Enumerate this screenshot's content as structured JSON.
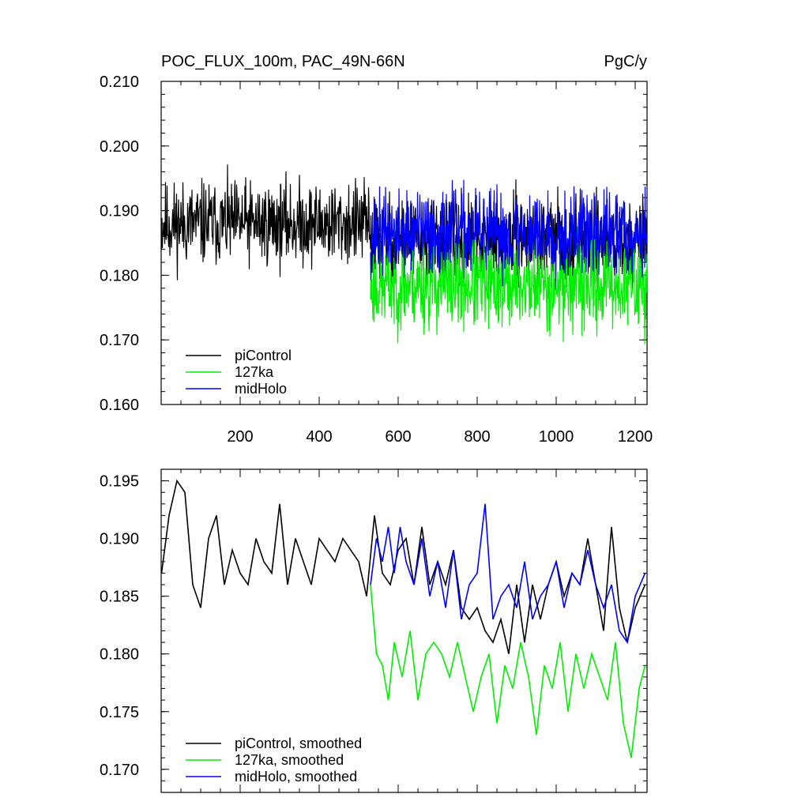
{
  "chart_data": [
    {
      "type": "line",
      "title": "POC_FLUX_100m, PAC_49N-66N",
      "units": "PgC/y",
      "xlim": [
        0,
        1230
      ],
      "ylim": [
        0.16,
        0.21
      ],
      "xticks": [
        200,
        400,
        600,
        800,
        1000,
        1200
      ],
      "xtick_labels": [
        "200",
        "400",
        "600",
        "800",
        "1000",
        "1200"
      ],
      "yticks": [
        0.16,
        0.17,
        0.18,
        0.19,
        0.2,
        0.21
      ],
      "ytick_labels": [
        "0.160",
        "0.170",
        "0.180",
        "0.190",
        "0.200",
        "0.210"
      ],
      "legend_position": "bottom-left",
      "series": [
        {
          "name": "piControl",
          "color": "#000000",
          "x_start": 1,
          "x_end": 1230,
          "mean": 0.188,
          "amplitude": 0.006,
          "mean_after_530": 0.1855
        },
        {
          "name": "127ka",
          "color": "#00ee00",
          "x_start": 530,
          "x_end": 1230,
          "mean": 0.1785,
          "amplitude": 0.0065
        },
        {
          "name": "midHolo",
          "color": "#0000ff",
          "x_start": 530,
          "x_end": 1230,
          "mean": 0.1865,
          "amplitude": 0.006
        }
      ]
    },
    {
      "type": "line",
      "xlim": [
        0,
        1230
      ],
      "ylim": [
        0.168,
        0.196
      ],
      "xticks": [
        200,
        400,
        600,
        800,
        1000,
        1200
      ],
      "yticks": [
        0.17,
        0.175,
        0.18,
        0.185,
        0.19,
        0.195
      ],
      "ytick_labels": [
        "0.170",
        "0.175",
        "0.180",
        "0.185",
        "0.190",
        "0.195"
      ],
      "legend_position": "bottom-left",
      "series": [
        {
          "name": "piControl, smoothed",
          "color": "#000000",
          "x": [
            1,
            20,
            40,
            60,
            80,
            100,
            120,
            140,
            160,
            180,
            200,
            220,
            240,
            260,
            280,
            300,
            320,
            340,
            360,
            380,
            400,
            420,
            440,
            460,
            480,
            500,
            520,
            540,
            560,
            580,
            600,
            620,
            640,
            660,
            680,
            700,
            720,
            740,
            760,
            780,
            800,
            820,
            840,
            860,
            880,
            900,
            920,
            940,
            960,
            980,
            1000,
            1020,
            1040,
            1060,
            1080,
            1100,
            1120,
            1140,
            1160,
            1180,
            1200,
            1225
          ],
          "values": [
            0.187,
            0.192,
            0.195,
            0.194,
            0.186,
            0.184,
            0.19,
            0.192,
            0.186,
            0.189,
            0.187,
            0.186,
            0.19,
            0.188,
            0.187,
            0.193,
            0.186,
            0.19,
            0.188,
            0.186,
            0.19,
            0.189,
            0.188,
            0.19,
            0.189,
            0.188,
            0.185,
            0.192,
            0.187,
            0.186,
            0.189,
            0.19,
            0.186,
            0.191,
            0.186,
            0.188,
            0.186,
            0.189,
            0.184,
            0.183,
            0.184,
            0.182,
            0.181,
            0.183,
            0.18,
            0.186,
            0.181,
            0.186,
            0.183,
            0.186,
            0.188,
            0.185,
            0.187,
            0.186,
            0.19,
            0.186,
            0.182,
            0.191,
            0.184,
            0.181,
            0.184,
            0.186
          ]
        },
        {
          "name": "127ka, smoothed",
          "color": "#00ee00",
          "x": [
            530,
            545,
            560,
            575,
            590,
            610,
            630,
            650,
            670,
            690,
            710,
            730,
            750,
            770,
            790,
            810,
            830,
            850,
            870,
            890,
            910,
            930,
            950,
            970,
            990,
            1010,
            1030,
            1050,
            1070,
            1090,
            1110,
            1130,
            1150,
            1170,
            1190,
            1210,
            1225
          ],
          "values": [
            0.186,
            0.18,
            0.179,
            0.176,
            0.181,
            0.178,
            0.182,
            0.176,
            0.18,
            0.181,
            0.18,
            0.178,
            0.181,
            0.178,
            0.175,
            0.178,
            0.18,
            0.174,
            0.179,
            0.177,
            0.181,
            0.178,
            0.173,
            0.179,
            0.177,
            0.181,
            0.175,
            0.18,
            0.177,
            0.18,
            0.178,
            0.176,
            0.181,
            0.174,
            0.171,
            0.177,
            0.179
          ]
        },
        {
          "name": "midHolo, smoothed",
          "color": "#0000ff",
          "x": [
            530,
            545,
            560,
            575,
            590,
            605,
            620,
            640,
            660,
            680,
            700,
            720,
            740,
            760,
            780,
            800,
            820,
            840,
            860,
            880,
            900,
            920,
            940,
            960,
            980,
            1000,
            1020,
            1040,
            1060,
            1080,
            1100,
            1120,
            1140,
            1160,
            1180,
            1200,
            1225
          ],
          "values": [
            0.186,
            0.19,
            0.188,
            0.191,
            0.187,
            0.191,
            0.188,
            0.186,
            0.19,
            0.185,
            0.188,
            0.184,
            0.189,
            0.183,
            0.186,
            0.187,
            0.193,
            0.183,
            0.185,
            0.186,
            0.184,
            0.188,
            0.183,
            0.185,
            0.186,
            0.188,
            0.184,
            0.187,
            0.186,
            0.189,
            0.186,
            0.184,
            0.186,
            0.182,
            0.181,
            0.185,
            0.187
          ]
        }
      ]
    }
  ]
}
